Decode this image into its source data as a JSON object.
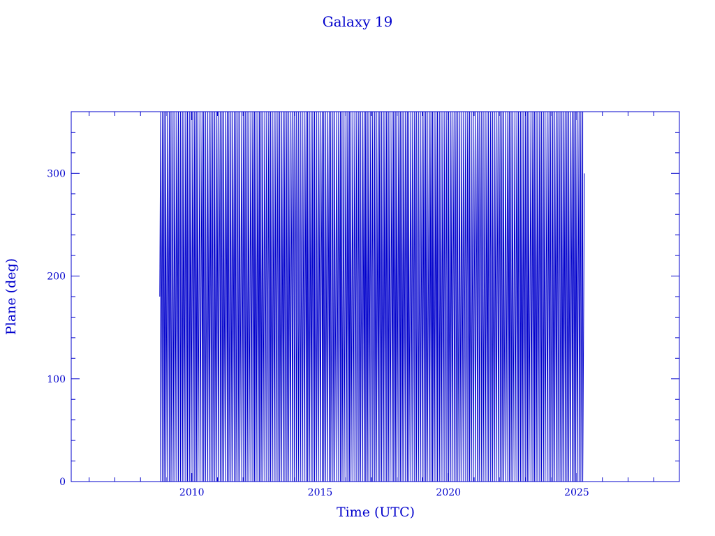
{
  "chart_data": {
    "type": "line",
    "title": "Galaxy 19",
    "xlabel": "Time (UTC)",
    "ylabel": "Plane (deg)",
    "xlim": [
      2005.3,
      2029.0
    ],
    "ylim": [
      0,
      360
    ],
    "x_ticks": [
      2010,
      2015,
      2020,
      2025
    ],
    "x_tick_labels": [
      "2010",
      "2015",
      "2020",
      "2025"
    ],
    "y_ticks": [
      0,
      100,
      200,
      300
    ],
    "y_tick_labels": [
      "0",
      "100",
      "200",
      "300"
    ],
    "grid": false,
    "color": "#0000cc",
    "data_range": [
      2008.75,
      2025.3
    ],
    "cycle_years": 0.0712,
    "series": [
      {
        "note_values": "sawtooth: plane angle rises 0 to 360 deg repeatedly",
        "start_x": 2008.75,
        "end_x": 2025.3,
        "min_y": 0,
        "max_y": 360
      }
    ]
  }
}
